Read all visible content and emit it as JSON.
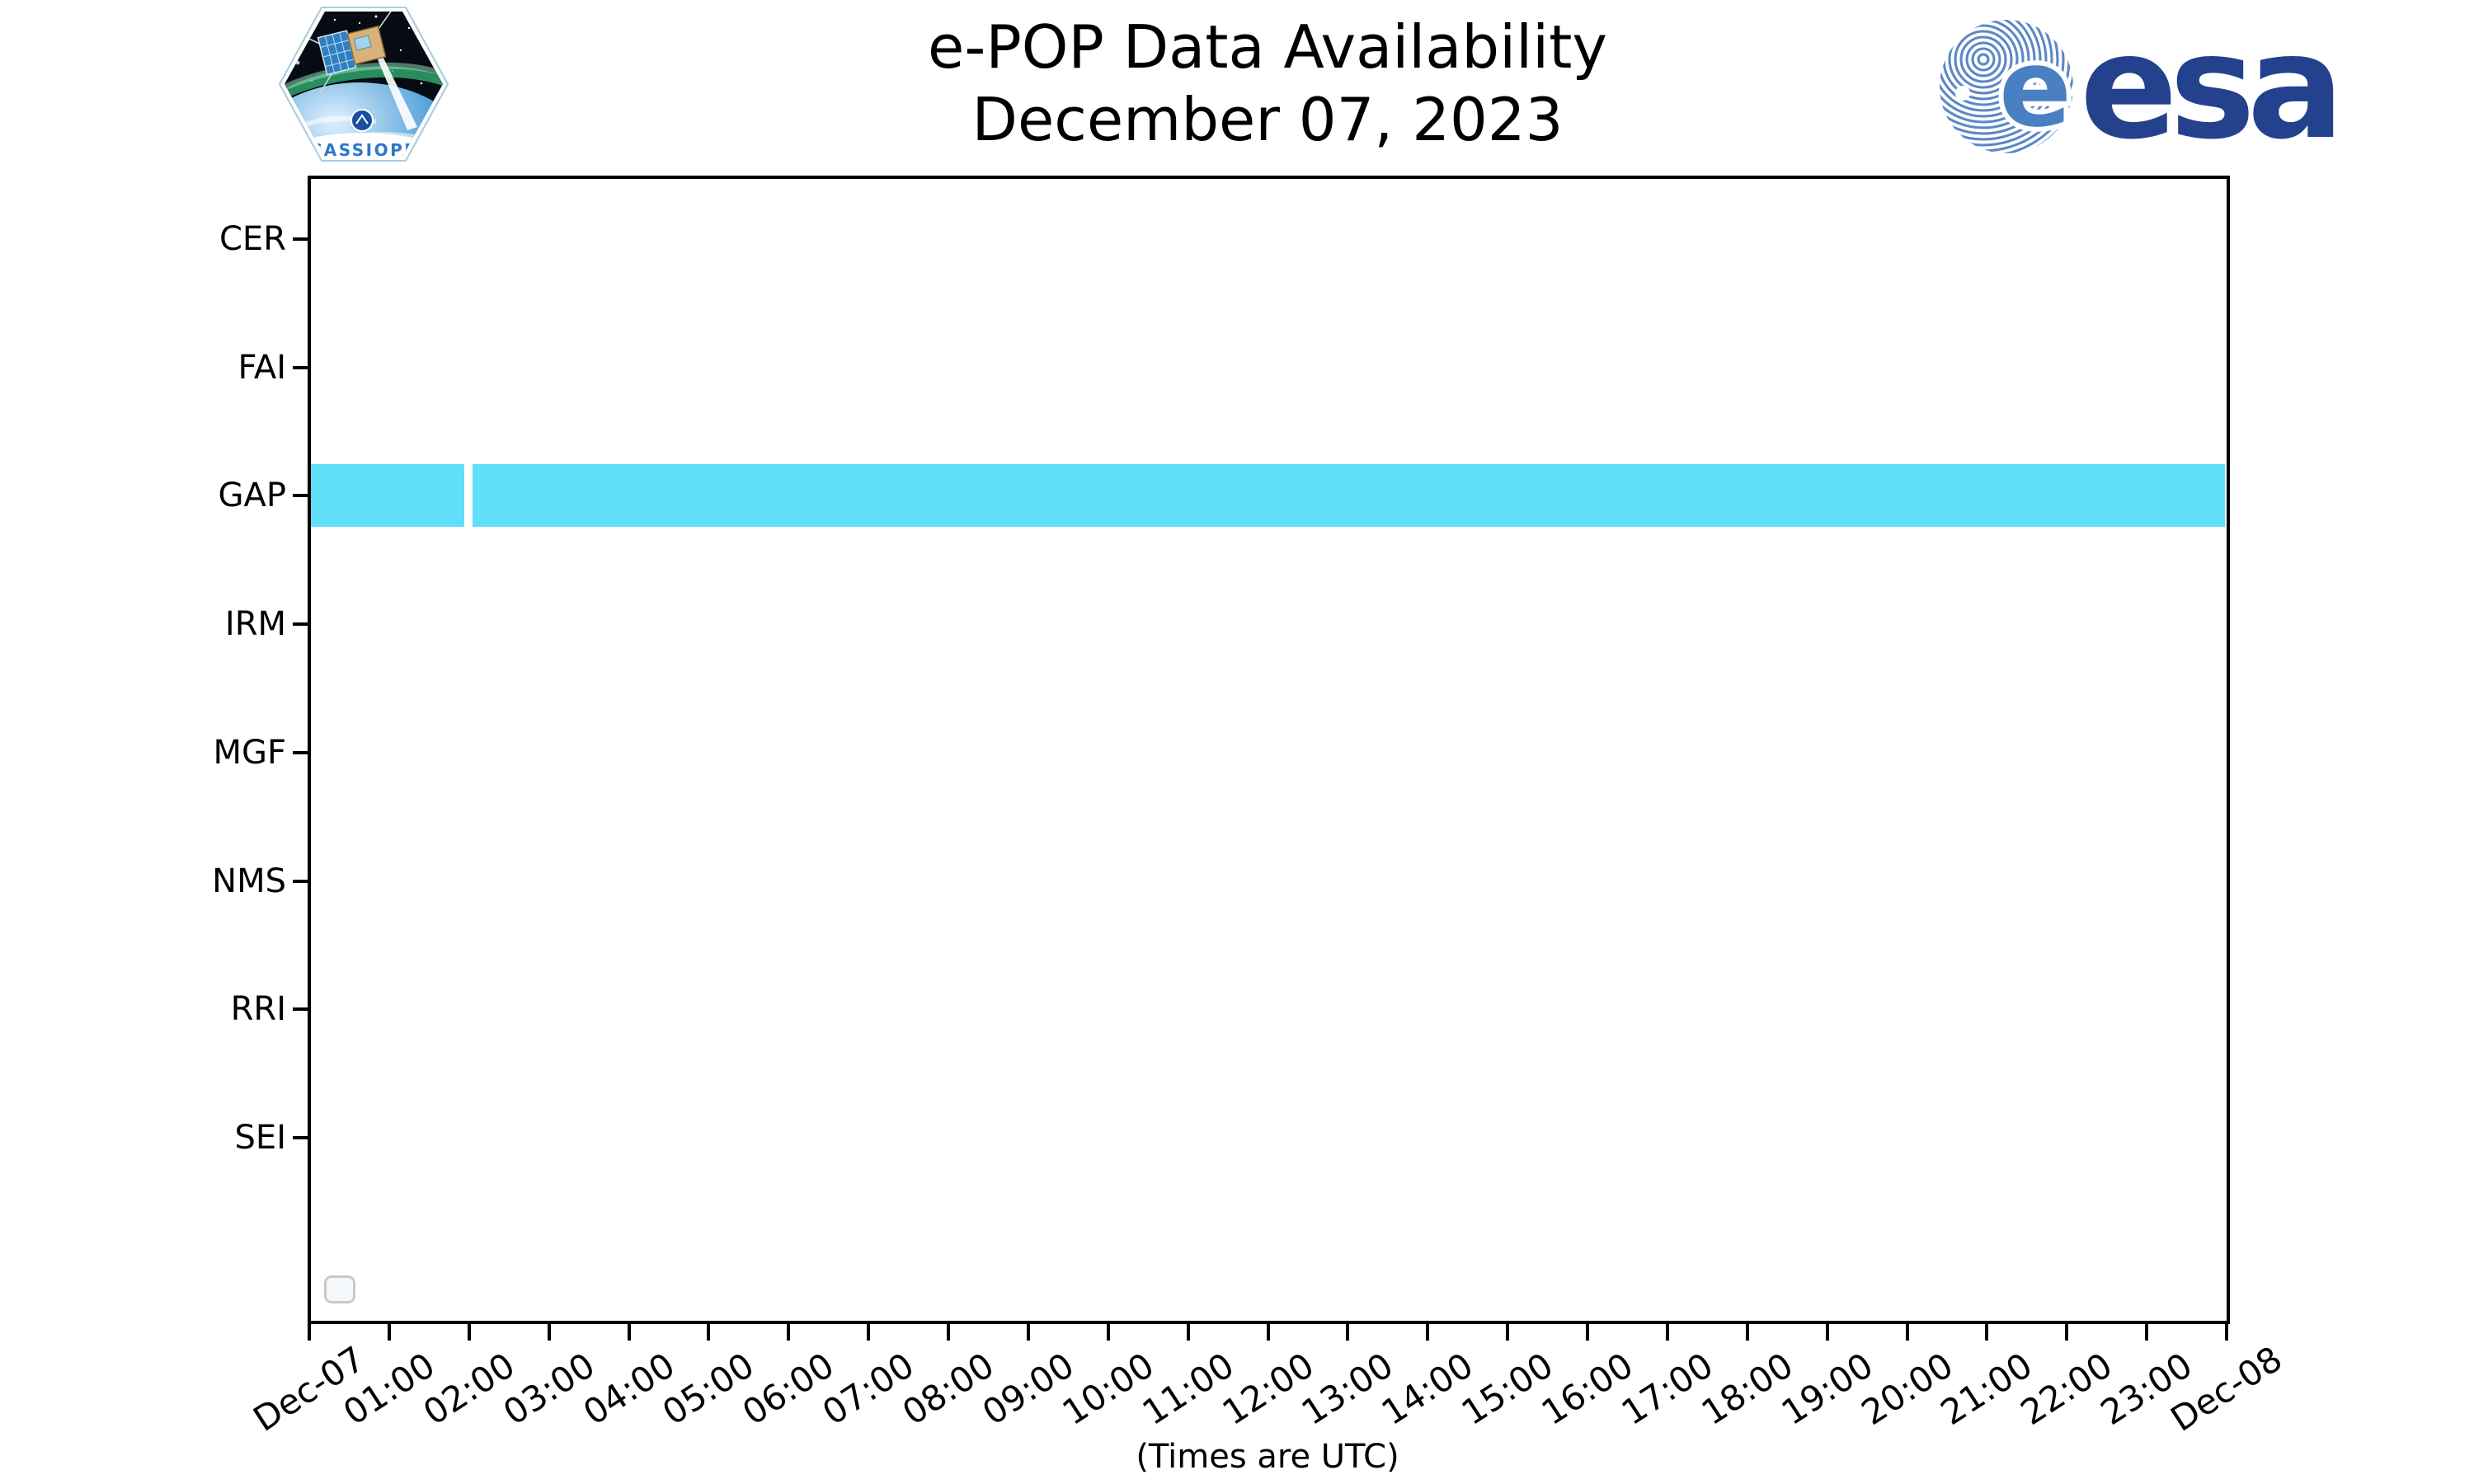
{
  "header": {
    "title_line1": "e-POP Data Availability",
    "title_line2": "December 07, 2023",
    "cassiope_patch_label": "CASSIOPE",
    "esa_wordmark": "esa"
  },
  "footer": {
    "caption": "(Times are UTC)"
  },
  "colors": {
    "bar_fill": "#61DEFA",
    "axis": "#000000",
    "esa_navy": "#24418E",
    "esa_stripe_blue": "#5B87C6",
    "cassiope_text_blue": "#2E77C9",
    "legend_border": "#C9C9C9",
    "legend_fill": "#F5F8FA"
  },
  "chart_data": {
    "type": "gantt",
    "title": "e-POP Data Availability",
    "subtitle": "December 07, 2023",
    "y_categories": [
      "CER",
      "FAI",
      "GAP",
      "IRM",
      "MGF",
      "NMS",
      "RRI",
      "SEI"
    ],
    "x_axis": {
      "range_hours": [
        0,
        24
      ],
      "tick_interval_hours": 1,
      "tick_labels": [
        "Dec-07",
        "01:00",
        "02:00",
        "03:00",
        "04:00",
        "05:00",
        "06:00",
        "07:00",
        "08:00",
        "09:00",
        "10:00",
        "11:00",
        "12:00",
        "13:00",
        "14:00",
        "15:00",
        "16:00",
        "17:00",
        "18:00",
        "19:00",
        "20:00",
        "21:00",
        "22:00",
        "23:00",
        "Dec-08"
      ],
      "caption": "(Times are UTC)"
    },
    "series": [
      {
        "name": "GAP",
        "color": "#61DEFA",
        "segments_hours": [
          [
            0.0,
            1.943
          ],
          [
            2.042,
            24.0
          ]
        ]
      }
    ],
    "legend": {
      "visible": true,
      "entries": []
    },
    "grid": false
  }
}
